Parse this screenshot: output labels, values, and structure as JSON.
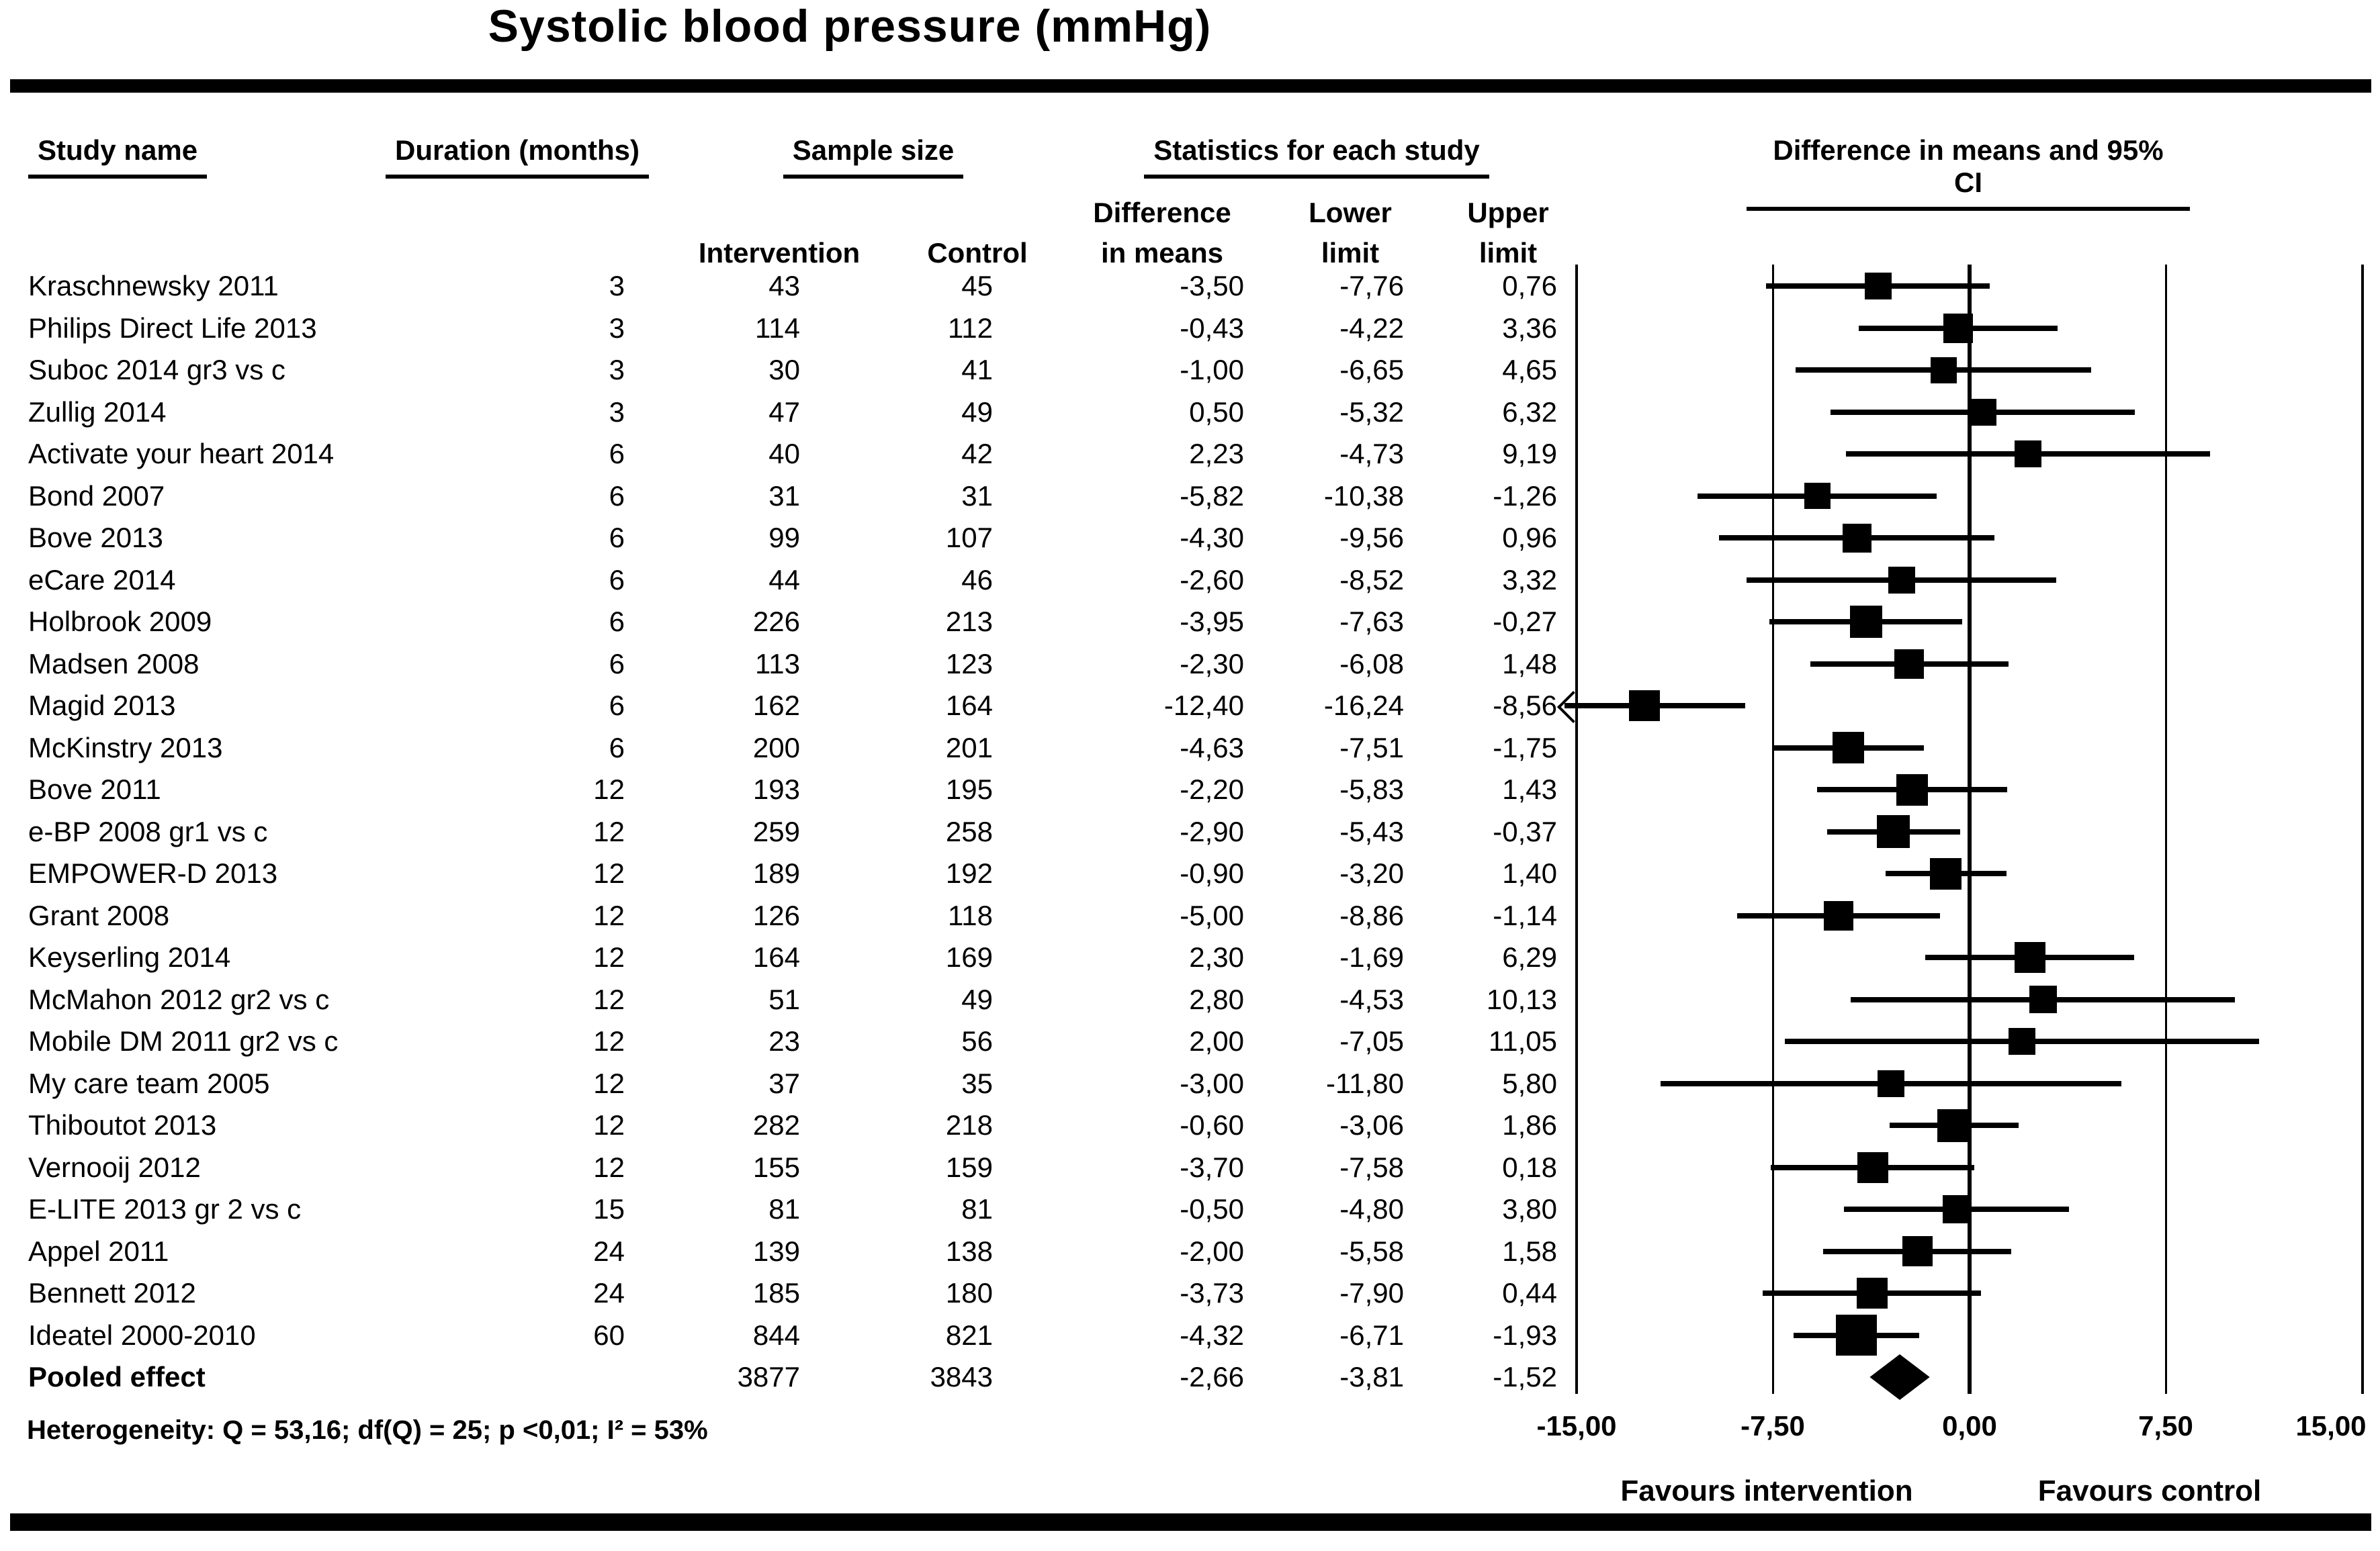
{
  "title": "Systolic blood pressure (mmHg)",
  "header": {
    "study_name": "Study name",
    "duration": "Duration (months)",
    "sample_size": "Sample size",
    "statistics": "Statistics for each study",
    "diff_ci": "Difference in means and 95% CI",
    "sub": {
      "intervention": "Intervention",
      "control": "Control",
      "difference_l1": "Difference",
      "difference_l2": "in means",
      "lower_l1": "Lower",
      "lower_l2": "limit",
      "upper_l1": "Upper",
      "upper_l2": "limit"
    }
  },
  "chart_data": {
    "type": "forest",
    "title": "Systolic blood pressure (mmHg)",
    "xlim": [
      -15,
      15
    ],
    "tick_values": [
      -15,
      -7.5,
      0,
      7.5,
      15
    ],
    "xlabel_ticks": [
      "-15,00",
      "-7,50",
      "0,00",
      "7,50",
      "15,00"
    ],
    "favours_left": "Favours intervention",
    "favours_right": "Favours control",
    "heterogeneity": "Heterogeneity: Q = 53,16; df(Q) = 25; p <0,01; I² = 53%",
    "studies": [
      {
        "name": "Kraschnewsky 2011",
        "duration": 3,
        "n_intervention": 43,
        "n_control": 45,
        "diff": -3.5,
        "lower": -7.76,
        "upper": 0.76
      },
      {
        "name": "Philips Direct Life 2013",
        "duration": 3,
        "n_intervention": 114,
        "n_control": 112,
        "diff": -0.43,
        "lower": -4.22,
        "upper": 3.36
      },
      {
        "name": "Suboc 2014 gr3 vs c",
        "duration": 3,
        "n_intervention": 30,
        "n_control": 41,
        "diff": -1.0,
        "lower": -6.65,
        "upper": 4.65
      },
      {
        "name": "Zullig 2014",
        "duration": 3,
        "n_intervention": 47,
        "n_control": 49,
        "diff": 0.5,
        "lower": -5.32,
        "upper": 6.32
      },
      {
        "name": "Activate your heart 2014",
        "duration": 6,
        "n_intervention": 40,
        "n_control": 42,
        "diff": 2.23,
        "lower": -4.73,
        "upper": 9.19
      },
      {
        "name": "Bond 2007",
        "duration": 6,
        "n_intervention": 31,
        "n_control": 31,
        "diff": -5.82,
        "lower": -10.38,
        "upper": -1.26
      },
      {
        "name": "Bove 2013",
        "duration": 6,
        "n_intervention": 99,
        "n_control": 107,
        "diff": -4.3,
        "lower": -9.56,
        "upper": 0.96
      },
      {
        "name": "eCare 2014",
        "duration": 6,
        "n_intervention": 44,
        "n_control": 46,
        "diff": -2.6,
        "lower": -8.52,
        "upper": 3.32
      },
      {
        "name": "Holbrook 2009",
        "duration": 6,
        "n_intervention": 226,
        "n_control": 213,
        "diff": -3.95,
        "lower": -7.63,
        "upper": -0.27
      },
      {
        "name": "Madsen 2008",
        "duration": 6,
        "n_intervention": 113,
        "n_control": 123,
        "diff": -2.3,
        "lower": -6.08,
        "upper": 1.48
      },
      {
        "name": "Magid 2013",
        "duration": 6,
        "n_intervention": 162,
        "n_control": 164,
        "diff": -12.4,
        "lower": -16.24,
        "upper": -8.56
      },
      {
        "name": "McKinstry 2013",
        "duration": 6,
        "n_intervention": 200,
        "n_control": 201,
        "diff": -4.63,
        "lower": -7.51,
        "upper": -1.75
      },
      {
        "name": "Bove 2011",
        "duration": 12,
        "n_intervention": 193,
        "n_control": 195,
        "diff": -2.2,
        "lower": -5.83,
        "upper": 1.43
      },
      {
        "name": "e-BP 2008 gr1 vs c",
        "duration": 12,
        "n_intervention": 259,
        "n_control": 258,
        "diff": -2.9,
        "lower": -5.43,
        "upper": -0.37
      },
      {
        "name": "EMPOWER-D 2013",
        "duration": 12,
        "n_intervention": 189,
        "n_control": 192,
        "diff": -0.9,
        "lower": -3.2,
        "upper": 1.4
      },
      {
        "name": "Grant 2008",
        "duration": 12,
        "n_intervention": 126,
        "n_control": 118,
        "diff": -5.0,
        "lower": -8.86,
        "upper": -1.14
      },
      {
        "name": "Keyserling 2014",
        "duration": 12,
        "n_intervention": 164,
        "n_control": 169,
        "diff": 2.3,
        "lower": -1.69,
        "upper": 6.29
      },
      {
        "name": "McMahon 2012 gr2 vs c",
        "duration": 12,
        "n_intervention": 51,
        "n_control": 49,
        "diff": 2.8,
        "lower": -4.53,
        "upper": 10.13
      },
      {
        "name": "Mobile DM 2011 gr2 vs c",
        "duration": 12,
        "n_intervention": 23,
        "n_control": 56,
        "diff": 2.0,
        "lower": -7.05,
        "upper": 11.05
      },
      {
        "name": "My care team 2005",
        "duration": 12,
        "n_intervention": 37,
        "n_control": 35,
        "diff": -3.0,
        "lower": -11.8,
        "upper": 5.8
      },
      {
        "name": "Thiboutot 2013",
        "duration": 12,
        "n_intervention": 282,
        "n_control": 218,
        "diff": -0.6,
        "lower": -3.06,
        "upper": 1.86
      },
      {
        "name": "Vernooij 2012",
        "duration": 12,
        "n_intervention": 155,
        "n_control": 159,
        "diff": -3.7,
        "lower": -7.58,
        "upper": 0.18
      },
      {
        "name": "E-LITE 2013 gr 2 vs c",
        "duration": 15,
        "n_intervention": 81,
        "n_control": 81,
        "diff": -0.5,
        "lower": -4.8,
        "upper": 3.8
      },
      {
        "name": "Appel 2011",
        "duration": 24,
        "n_intervention": 139,
        "n_control": 138,
        "diff": -2.0,
        "lower": -5.58,
        "upper": 1.58
      },
      {
        "name": "Bennett 2012",
        "duration": 24,
        "n_intervention": 185,
        "n_control": 180,
        "diff": -3.73,
        "lower": -7.9,
        "upper": 0.44
      },
      {
        "name": "Ideatel 2000-2010",
        "duration": 60,
        "n_intervention": 844,
        "n_control": 821,
        "diff": -4.32,
        "lower": -6.71,
        "upper": -1.93
      }
    ],
    "pooled": {
      "label": "Pooled effect",
      "n_intervention": 3877,
      "n_control": 3843,
      "diff": -2.66,
      "lower": -3.81,
      "upper": -1.52
    }
  }
}
